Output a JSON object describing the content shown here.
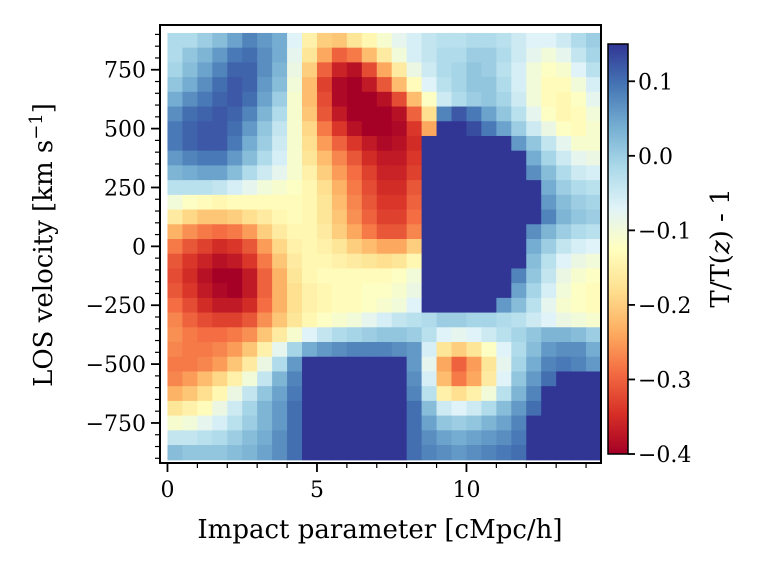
{
  "chart_data": {
    "type": "heatmap",
    "title": "",
    "xlabel": "Impact parameter [cMpc/h]",
    "ylabel": "LOS velocity [km s^-1]",
    "ylabel_main": "LOS velocity [km s",
    "ylabel_exp": "−1",
    "ylabel_close": "]",
    "colorbar_label": "T/T(z) - 1",
    "colorbar_label_parts": {
      "a": "T/T(",
      "z": "z",
      "b": ") - 1"
    },
    "colormap": "RdYlBu",
    "colormap_stops": [
      "#a50026",
      "#d73027",
      "#f46d43",
      "#fdae61",
      "#fee090",
      "#ffffbf",
      "#e0f3f8",
      "#abd9e9",
      "#74add1",
      "#4575b4",
      "#313695"
    ],
    "xlim": [
      -0.25,
      14.5
    ],
    "ylim": [
      -920,
      940
    ],
    "clim": [
      -0.4,
      0.15
    ],
    "x_ticks": [
      0,
      5,
      10
    ],
    "x_tick_labels": [
      "0",
      "5",
      "10"
    ],
    "y_ticks": [
      -750,
      -500,
      -250,
      0,
      250,
      500,
      750
    ],
    "y_tick_labels": [
      "−750",
      "−500",
      "−250",
      "0",
      "250",
      "500",
      "750"
    ],
    "colorbar_ticks": [
      0.1,
      0.0,
      -0.1,
      -0.2,
      -0.3,
      -0.4
    ],
    "colorbar_tick_labels": [
      "0.1",
      "0.0",
      "−0.1",
      "−0.2",
      "−0.3",
      "−0.4"
    ],
    "x_centers": [
      0.25,
      0.75,
      1.25,
      1.75,
      2.25,
      2.75,
      3.25,
      3.75,
      4.25,
      4.75,
      5.25,
      5.75,
      6.25,
      6.75,
      7.25,
      7.75,
      8.25,
      8.75,
      9.25,
      9.75,
      10.25,
      10.75,
      11.25,
      11.75,
      12.25,
      12.75,
      13.25,
      13.75,
      14.25
    ],
    "y_centers": [
      875,
      812.5,
      750,
      687.5,
      625,
      562.5,
      500,
      437.5,
      375,
      312.5,
      250,
      187.5,
      125,
      62.5,
      0,
      -62.5,
      -125,
      -187.5,
      -250,
      -312.5,
      -375,
      -437.5,
      -500,
      -562.5,
      -625,
      -687.5,
      -750,
      -812.5,
      -875
    ],
    "values": [
      [
        -0.02,
        -0.02,
        0.0,
        0.02,
        0.05,
        0.08,
        0.06,
        0.04,
        -0.07,
        -0.15,
        -0.2,
        -0.21,
        -0.17,
        -0.14,
        -0.11,
        -0.08,
        -0.06,
        -0.04,
        -0.03,
        -0.03,
        -0.02,
        -0.02,
        -0.03,
        -0.05,
        -0.07,
        -0.07,
        -0.05,
        -0.02,
        0.0
      ],
      [
        -0.02,
        0.01,
        0.03,
        0.06,
        0.09,
        0.1,
        0.07,
        0.04,
        -0.08,
        -0.17,
        -0.24,
        -0.3,
        -0.28,
        -0.22,
        -0.16,
        -0.1,
        -0.06,
        -0.04,
        -0.02,
        -0.02,
        0.0,
        0.0,
        -0.02,
        -0.05,
        -0.08,
        -0.1,
        -0.08,
        -0.04,
        -0.01
      ],
      [
        -0.01,
        0.02,
        0.05,
        0.08,
        0.11,
        0.11,
        0.07,
        0.03,
        -0.09,
        -0.2,
        -0.3,
        -0.36,
        -0.38,
        -0.32,
        -0.24,
        -0.16,
        -0.09,
        -0.05,
        -0.02,
        -0.01,
        0.01,
        0.0,
        -0.03,
        -0.06,
        -0.1,
        -0.12,
        -0.11,
        -0.07,
        -0.03
      ],
      [
        0.01,
        0.04,
        0.07,
        0.1,
        0.12,
        0.11,
        0.06,
        0.02,
        -0.1,
        -0.22,
        -0.33,
        -0.39,
        -0.4,
        -0.37,
        -0.31,
        -0.22,
        -0.13,
        -0.07,
        -0.03,
        -0.01,
        0.01,
        0.01,
        -0.02,
        -0.06,
        -0.1,
        -0.13,
        -0.13,
        -0.1,
        -0.06
      ],
      [
        0.04,
        0.07,
        0.09,
        0.11,
        0.12,
        0.1,
        0.05,
        0.0,
        -0.11,
        -0.22,
        -0.32,
        -0.39,
        -0.4,
        -0.4,
        -0.38,
        -0.32,
        -0.22,
        -0.12,
        -0.05,
        -0.02,
        0.0,
        0.01,
        -0.01,
        -0.05,
        -0.1,
        -0.13,
        -0.14,
        -0.12,
        -0.08
      ],
      [
        0.07,
        0.1,
        0.11,
        0.12,
        0.11,
        0.08,
        0.03,
        -0.02,
        -0.11,
        -0.21,
        -0.31,
        -0.37,
        -0.4,
        -0.4,
        -0.4,
        -0.38,
        -0.3,
        -0.18,
        0.08,
        0.12,
        0.09,
        0.05,
        0.01,
        -0.03,
        -0.08,
        -0.12,
        -0.14,
        -0.13,
        -0.1
      ],
      [
        0.09,
        0.11,
        0.12,
        0.12,
        0.1,
        0.06,
        0.01,
        -0.04,
        -0.11,
        -0.19,
        -0.28,
        -0.34,
        -0.38,
        -0.4,
        -0.4,
        -0.39,
        -0.34,
        -0.24,
        0.15,
        0.15,
        0.13,
        0.09,
        0.05,
        0.0,
        -0.05,
        -0.09,
        -0.12,
        -0.13,
        -0.11
      ],
      [
        0.09,
        0.11,
        0.12,
        0.12,
        0.09,
        0.04,
        0.0,
        -0.05,
        -0.11,
        -0.18,
        -0.25,
        -0.3,
        -0.34,
        -0.37,
        -0.39,
        -0.38,
        -0.35,
        0.15,
        0.15,
        0.15,
        0.15,
        0.15,
        0.15,
        0.06,
        0.01,
        -0.04,
        -0.08,
        -0.11,
        -0.11
      ],
      [
        0.06,
        0.08,
        0.09,
        0.09,
        0.06,
        0.02,
        -0.02,
        -0.06,
        -0.11,
        -0.17,
        -0.22,
        -0.27,
        -0.31,
        -0.35,
        -0.37,
        -0.37,
        -0.34,
        0.15,
        0.15,
        0.15,
        0.15,
        0.15,
        0.15,
        0.15,
        0.04,
        -0.01,
        -0.05,
        -0.08,
        -0.09
      ],
      [
        0.03,
        0.04,
        0.05,
        0.05,
        0.02,
        -0.02,
        -0.05,
        -0.08,
        -0.11,
        -0.15,
        -0.2,
        -0.25,
        -0.29,
        -0.33,
        -0.36,
        -0.36,
        -0.33,
        0.15,
        0.15,
        0.15,
        0.15,
        0.15,
        0.15,
        0.15,
        0.07,
        0.02,
        -0.02,
        -0.05,
        -0.06
      ],
      [
        -0.03,
        -0.03,
        -0.03,
        -0.04,
        -0.06,
        -0.08,
        -0.1,
        -0.11,
        -0.12,
        -0.14,
        -0.18,
        -0.23,
        -0.28,
        -0.32,
        -0.35,
        -0.35,
        -0.31,
        0.15,
        0.15,
        0.15,
        0.15,
        0.15,
        0.15,
        0.15,
        0.15,
        0.04,
        0.0,
        -0.02,
        -0.03
      ],
      [
        -0.1,
        -0.12,
        -0.13,
        -0.14,
        -0.13,
        -0.13,
        -0.13,
        -0.13,
        -0.13,
        -0.14,
        -0.17,
        -0.22,
        -0.27,
        -0.31,
        -0.34,
        -0.34,
        -0.3,
        0.15,
        0.15,
        0.15,
        0.15,
        0.15,
        0.15,
        0.15,
        0.15,
        0.06,
        0.02,
        0.0,
        -0.01
      ],
      [
        -0.16,
        -0.19,
        -0.21,
        -0.21,
        -0.2,
        -0.18,
        -0.16,
        -0.14,
        -0.13,
        -0.14,
        -0.17,
        -0.21,
        -0.26,
        -0.3,
        -0.33,
        -0.33,
        -0.29,
        0.15,
        0.15,
        0.15,
        0.15,
        0.15,
        0.15,
        0.15,
        0.15,
        0.08,
        0.03,
        0.01,
        0.0
      ],
      [
        -0.23,
        -0.26,
        -0.28,
        -0.29,
        -0.28,
        -0.25,
        -0.2,
        -0.16,
        -0.14,
        -0.14,
        -0.16,
        -0.2,
        -0.24,
        -0.28,
        -0.31,
        -0.31,
        -0.27,
        0.15,
        0.15,
        0.15,
        0.15,
        0.15,
        0.15,
        0.15,
        0.07,
        0.03,
        0.0,
        -0.02,
        -0.03
      ],
      [
        -0.28,
        -0.31,
        -0.33,
        -0.35,
        -0.34,
        -0.31,
        -0.25,
        -0.19,
        -0.15,
        -0.14,
        -0.15,
        -0.17,
        -0.2,
        -0.22,
        -0.24,
        -0.24,
        -0.2,
        0.15,
        0.15,
        0.15,
        0.15,
        0.15,
        0.15,
        0.15,
        0.04,
        0.0,
        -0.04,
        -0.06,
        -0.07
      ],
      [
        -0.31,
        -0.34,
        -0.36,
        -0.38,
        -0.37,
        -0.34,
        -0.28,
        -0.21,
        -0.16,
        -0.14,
        -0.14,
        -0.15,
        -0.16,
        -0.17,
        -0.18,
        -0.17,
        -0.14,
        0.15,
        0.15,
        0.15,
        0.15,
        0.15,
        0.15,
        0.15,
        0.02,
        -0.03,
        -0.07,
        -0.09,
        -0.1
      ],
      [
        -0.32,
        -0.35,
        -0.38,
        -0.4,
        -0.4,
        -0.37,
        -0.3,
        -0.23,
        -0.17,
        -0.14,
        -0.13,
        -0.13,
        -0.13,
        -0.13,
        -0.13,
        -0.12,
        -0.1,
        0.15,
        0.15,
        0.15,
        0.15,
        0.15,
        0.15,
        0.08,
        0.01,
        -0.04,
        -0.09,
        -0.11,
        -0.12
      ],
      [
        -0.31,
        -0.34,
        -0.37,
        -0.39,
        -0.4,
        -0.37,
        -0.3,
        -0.23,
        -0.18,
        -0.15,
        -0.14,
        -0.13,
        -0.13,
        -0.12,
        -0.12,
        -0.11,
        -0.09,
        0.15,
        0.15,
        0.15,
        0.15,
        0.15,
        0.15,
        0.05,
        -0.01,
        -0.06,
        -0.1,
        -0.12,
        -0.13
      ],
      [
        -0.29,
        -0.32,
        -0.35,
        -0.37,
        -0.37,
        -0.35,
        -0.29,
        -0.23,
        -0.18,
        -0.15,
        -0.14,
        -0.13,
        -0.13,
        -0.12,
        -0.11,
        -0.1,
        -0.07,
        0.15,
        0.15,
        0.15,
        0.15,
        0.15,
        0.06,
        0.02,
        -0.03,
        -0.08,
        -0.11,
        -0.12,
        -0.13
      ],
      [
        -0.27,
        -0.3,
        -0.32,
        -0.33,
        -0.33,
        -0.31,
        -0.26,
        -0.21,
        -0.17,
        -0.14,
        -0.12,
        -0.11,
        -0.1,
        -0.08,
        -0.06,
        -0.04,
        -0.03,
        -0.02,
        0.0,
        0.0,
        -0.01,
        -0.01,
        -0.02,
        -0.03,
        -0.05,
        -0.07,
        -0.09,
        -0.1,
        -0.11
      ],
      [
        -0.26,
        -0.28,
        -0.29,
        -0.29,
        -0.28,
        -0.26,
        -0.21,
        -0.16,
        -0.11,
        -0.07,
        -0.04,
        -0.02,
        -0.01,
        0.0,
        0.01,
        0.01,
        0.0,
        -0.03,
        -0.07,
        -0.08,
        -0.07,
        -0.05,
        -0.03,
        -0.01,
        0.01,
        0.03,
        0.03,
        0.02,
        0.0
      ],
      [
        -0.27,
        -0.28,
        -0.28,
        -0.27,
        -0.25,
        -0.21,
        -0.15,
        -0.08,
        -0.01,
        0.04,
        0.06,
        0.07,
        0.08,
        0.08,
        0.08,
        0.07,
        0.06,
        -0.06,
        -0.17,
        -0.2,
        -0.17,
        -0.12,
        -0.07,
        -0.02,
        0.02,
        0.06,
        0.07,
        0.07,
        0.04
      ],
      [
        -0.28,
        -0.28,
        -0.27,
        -0.25,
        -0.21,
        -0.16,
        -0.09,
        -0.02,
        0.06,
        0.15,
        0.15,
        0.15,
        0.15,
        0.15,
        0.15,
        0.15,
        0.06,
        -0.08,
        -0.24,
        -0.3,
        -0.25,
        -0.17,
        -0.08,
        -0.01,
        0.04,
        0.08,
        0.09,
        0.08,
        0.06
      ],
      [
        -0.27,
        -0.25,
        -0.22,
        -0.19,
        -0.15,
        -0.1,
        -0.04,
        0.03,
        0.08,
        0.15,
        0.15,
        0.15,
        0.15,
        0.15,
        0.15,
        0.15,
        0.07,
        -0.06,
        -0.22,
        -0.28,
        -0.24,
        -0.16,
        -0.07,
        0.01,
        0.06,
        0.1,
        0.15,
        0.15,
        0.15
      ],
      [
        -0.23,
        -0.21,
        -0.18,
        -0.14,
        -0.09,
        -0.04,
        0.01,
        0.05,
        0.09,
        0.15,
        0.15,
        0.15,
        0.15,
        0.15,
        0.15,
        0.15,
        0.08,
        -0.03,
        -0.15,
        -0.18,
        -0.15,
        -0.1,
        -0.03,
        0.03,
        0.08,
        0.15,
        0.15,
        0.15,
        0.15
      ],
      [
        -0.17,
        -0.15,
        -0.13,
        -0.09,
        -0.05,
        -0.01,
        0.03,
        0.06,
        0.1,
        0.15,
        0.15,
        0.15,
        0.15,
        0.15,
        0.15,
        0.15,
        0.1,
        0.02,
        -0.05,
        -0.07,
        -0.05,
        -0.02,
        0.02,
        0.06,
        0.1,
        0.15,
        0.15,
        0.15,
        0.15
      ],
      [
        -0.11,
        -0.1,
        -0.08,
        -0.06,
        -0.03,
        0.0,
        0.03,
        0.06,
        0.1,
        0.15,
        0.15,
        0.15,
        0.15,
        0.15,
        0.15,
        0.15,
        0.1,
        0.05,
        0.01,
        0.0,
        0.01,
        0.03,
        0.05,
        0.08,
        0.15,
        0.15,
        0.15,
        0.15,
        0.15
      ],
      [
        -0.04,
        -0.04,
        -0.03,
        -0.02,
        0.0,
        0.02,
        0.04,
        0.07,
        0.1,
        0.15,
        0.15,
        0.15,
        0.15,
        0.15,
        0.15,
        0.15,
        0.1,
        0.07,
        0.05,
        0.04,
        0.05,
        0.06,
        0.07,
        0.09,
        0.15,
        0.15,
        0.15,
        0.15,
        0.15
      ],
      [
        0.02,
        0.01,
        0.01,
        0.01,
        0.02,
        0.03,
        0.05,
        0.07,
        0.1,
        0.15,
        0.15,
        0.15,
        0.15,
        0.15,
        0.15,
        0.15,
        0.1,
        0.08,
        0.07,
        0.06,
        0.07,
        0.08,
        0.09,
        0.1,
        0.15,
        0.15,
        0.15,
        0.15,
        0.15
      ]
    ]
  }
}
